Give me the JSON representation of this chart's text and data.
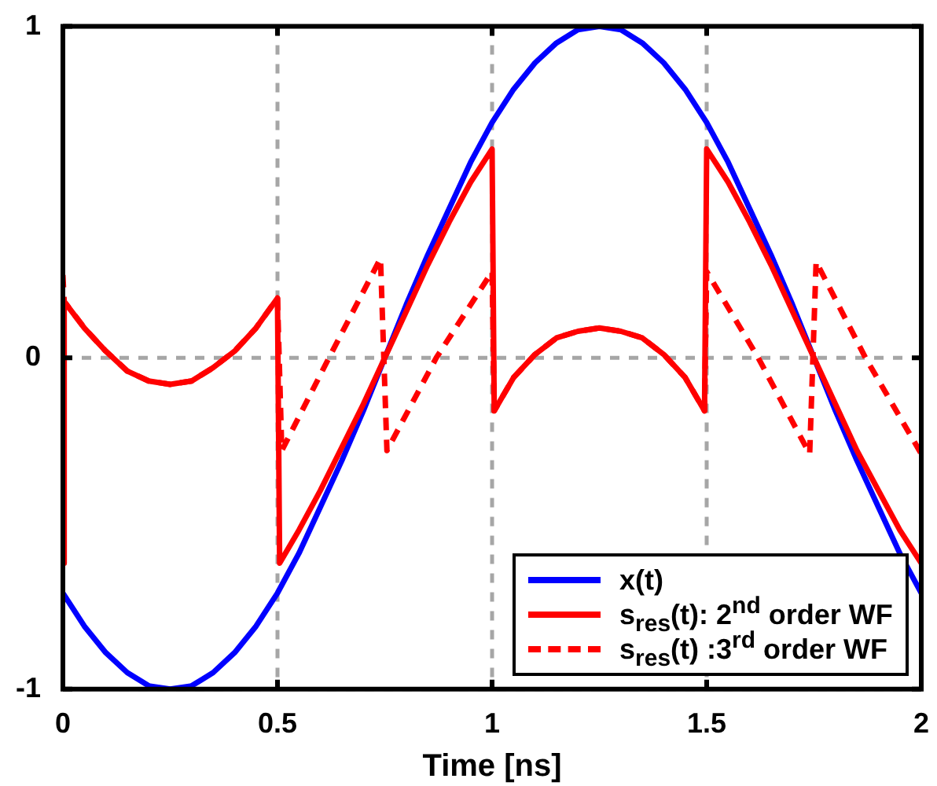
{
  "chart_data": {
    "type": "line",
    "xlabel": "Time [ns]",
    "xlim": [
      0,
      2
    ],
    "ylim": [
      -1,
      1
    ],
    "xticks": [
      0,
      0.5,
      1,
      1.5,
      2
    ],
    "yticks": [
      -1,
      0,
      1
    ],
    "grid": true,
    "legend": "bottom right",
    "marker": "none",
    "series": [
      {
        "name": "x(t)",
        "color": "#0000ff",
        "line_style": "solid",
        "x": [
          0,
          0.05,
          0.1,
          0.15,
          0.2,
          0.25,
          0.3,
          0.35,
          0.4,
          0.45,
          0.5,
          0.55,
          0.6,
          0.65,
          0.7,
          0.75,
          0.8,
          0.85,
          0.9,
          0.95,
          1,
          1.05,
          1.1,
          1.15,
          1.2,
          1.25,
          1.3,
          1.35,
          1.4,
          1.45,
          1.5,
          1.55,
          1.6,
          1.65,
          1.7,
          1.75,
          1.8,
          1.85,
          1.9,
          1.95,
          2
        ],
        "values": [
          -0.71,
          -0.81,
          -0.89,
          -0.95,
          -0.99,
          -1,
          -0.99,
          -0.95,
          -0.89,
          -0.81,
          -0.71,
          -0.59,
          -0.45,
          -0.31,
          -0.16,
          0,
          0.16,
          0.31,
          0.45,
          0.59,
          0.71,
          0.81,
          0.89,
          0.95,
          0.99,
          1,
          0.99,
          0.95,
          0.89,
          0.81,
          0.71,
          0.59,
          0.45,
          0.31,
          0.16,
          0,
          -0.16,
          -0.31,
          -0.45,
          -0.59,
          -0.71
        ]
      },
      {
        "name": "s$_{res}$(t): 2$^{nd}$ order WF",
        "color": "#ff0000",
        "line_style": "solid",
        "x": [
          0,
          0.003,
          0.05,
          0.1,
          0.15,
          0.2,
          0.25,
          0.3,
          0.35,
          0.4,
          0.45,
          0.5,
          0.505,
          0.55,
          0.6,
          0.65,
          0.7,
          0.75,
          0.8,
          0.85,
          0.9,
          0.95,
          1,
          1.005,
          1.05,
          1.1,
          1.15,
          1.2,
          1.25,
          1.3,
          1.35,
          1.4,
          1.45,
          1.495,
          1.5,
          1.55,
          1.6,
          1.65,
          1.7,
          1.75,
          1.8,
          1.85,
          1.9,
          1.95,
          2
        ],
        "values": [
          -0.62,
          0.17,
          0.09,
          0.02,
          -0.04,
          -0.07,
          -0.08,
          -0.07,
          -0.03,
          0.02,
          0.09,
          0.18,
          -0.62,
          -0.52,
          -0.4,
          -0.27,
          -0.14,
          0,
          0.14,
          0.28,
          0.41,
          0.53,
          0.63,
          -0.16,
          -0.06,
          0.01,
          0.06,
          0.08,
          0.09,
          0.08,
          0.06,
          0.01,
          -0.06,
          -0.16,
          0.63,
          0.53,
          0.41,
          0.28,
          0.14,
          0,
          -0.14,
          -0.28,
          -0.4,
          -0.52,
          -0.62
        ]
      },
      {
        "name": "s$_{res}$(t) :3$^{rd}$ order WF",
        "color": "#ff0000",
        "line_style": "dashed",
        "x": [
          0,
          0.003,
          0.05,
          0.1,
          0.15,
          0.2,
          0.25,
          0.3,
          0.35,
          0.4,
          0.45,
          0.5,
          0.51,
          0.62,
          0.74,
          0.755,
          0.87,
          1,
          1.005,
          1.05,
          1.1,
          1.15,
          1.2,
          1.25,
          1.3,
          1.35,
          1.4,
          1.45,
          1.495,
          1.5,
          1.62,
          1.74,
          1.755,
          1.87,
          2
        ],
        "values": [
          0.25,
          0.17,
          0.09,
          0.02,
          -0.04,
          -0.07,
          -0.08,
          -0.07,
          -0.03,
          0.02,
          0.09,
          0.18,
          -0.28,
          0,
          0.3,
          -0.28,
          0,
          0.26,
          -0.16,
          -0.06,
          0.01,
          0.06,
          0.08,
          0.09,
          0.08,
          0.06,
          0.01,
          -0.06,
          -0.16,
          0.26,
          0,
          -0.29,
          0.29,
          0,
          -0.29
        ]
      }
    ]
  }
}
